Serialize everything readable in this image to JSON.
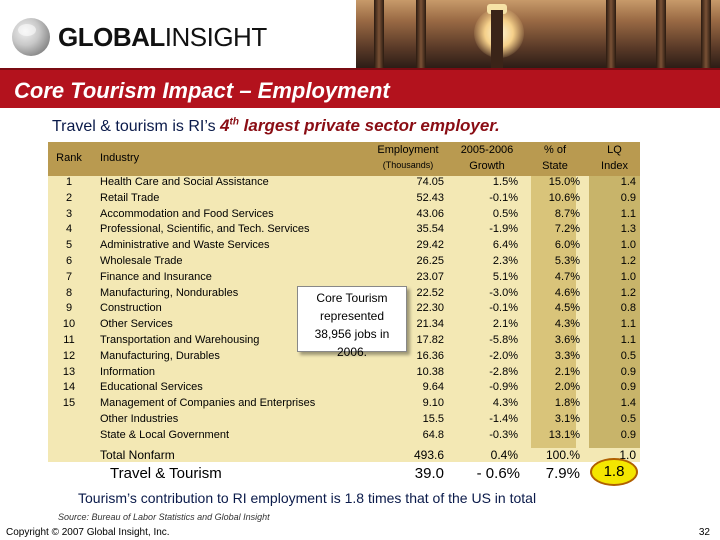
{
  "logo": {
    "word1": "GLOBAL",
    "word2": "INSIGHT"
  },
  "slide_title": "Core Tourism Impact – Employment",
  "subtitle": {
    "lead": "Travel & tourism is RI’s ",
    "ordinal": "4",
    "sup": "th",
    "rest": " largest private sector employer."
  },
  "table": {
    "headers": {
      "rank": "Rank",
      "industry": "Industry",
      "employment": "Employment",
      "employment_unit": "(Thousands)",
      "growth_line1": "2005-2006",
      "growth_line2": "Growth",
      "pct_line1": "% of",
      "pct_line2": "State",
      "lq_line1": "LQ",
      "lq_line2": "Index"
    },
    "rows": [
      {
        "rank": "1",
        "industry": "Health Care and Social Assistance",
        "employment": "74.05",
        "growth": "1.5%",
        "pct": "15.0%",
        "lq": "1.4"
      },
      {
        "rank": "2",
        "industry": "Retail Trade",
        "employment": "52.43",
        "growth": "-0.1%",
        "pct": "10.6%",
        "lq": "0.9"
      },
      {
        "rank": "3",
        "industry": "Accommodation and Food Services",
        "employment": "43.06",
        "growth": "0.5%",
        "pct": "8.7%",
        "lq": "1.1"
      },
      {
        "rank": "4",
        "industry": "Professional, Scientific, and Tech. Services",
        "employment": "35.54",
        "growth": "-1.9%",
        "pct": "7.2%",
        "lq": "1.3"
      },
      {
        "rank": "5",
        "industry": "Administrative and Waste Services",
        "employment": "29.42",
        "growth": "6.4%",
        "pct": "6.0%",
        "lq": "1.0"
      },
      {
        "rank": "6",
        "industry": "Wholesale Trade",
        "employment": "26.25",
        "growth": "2.3%",
        "pct": "5.3%",
        "lq": "1.2"
      },
      {
        "rank": "7",
        "industry": "Finance and Insurance",
        "employment": "23.07",
        "growth": "5.1%",
        "pct": "4.7%",
        "lq": "1.0"
      },
      {
        "rank": "8",
        "industry": "Manufacturing, Nondurables",
        "employment": "22.52",
        "growth": "-3.0%",
        "pct": "4.6%",
        "lq": "1.2"
      },
      {
        "rank": "9",
        "industry": "Construction",
        "employment": "22.30",
        "growth": "-0.1%",
        "pct": "4.5%",
        "lq": "0.8"
      },
      {
        "rank": "10",
        "industry": "Other Services",
        "employment": "21.34",
        "growth": "2.1%",
        "pct": "4.3%",
        "lq": "1.1"
      },
      {
        "rank": "11",
        "industry": "Transportation and Warehousing",
        "employment": "17.82",
        "growth": "-5.8%",
        "pct": "3.6%",
        "lq": "1.1"
      },
      {
        "rank": "12",
        "industry": "Manufacturing, Durables",
        "employment": "16.36",
        "growth": "-2.0%",
        "pct": "3.3%",
        "lq": "0.5"
      },
      {
        "rank": "13",
        "industry": "Information",
        "employment": "10.38",
        "growth": "-2.8%",
        "pct": "2.1%",
        "lq": "0.9"
      },
      {
        "rank": "14",
        "industry": "Educational Services",
        "employment": "9.64",
        "growth": "-0.9%",
        "pct": "2.0%",
        "lq": "0.9"
      },
      {
        "rank": "15",
        "industry": "Management of Companies and Enterprises",
        "employment": "9.10",
        "growth": "4.3%",
        "pct": "1.8%",
        "lq": "1.4"
      },
      {
        "rank": "",
        "industry": "Other Industries",
        "employment": "15.5",
        "growth": "-1.4%",
        "pct": "3.1%",
        "lq": "0.5"
      },
      {
        "rank": "",
        "industry": "State & Local Government",
        "employment": "64.8",
        "growth": "-0.3%",
        "pct": "13.1%",
        "lq": "0.9"
      }
    ],
    "total": {
      "label": "Total Nonfarm",
      "employment": "493.6",
      "growth": "0.4%",
      "pct": "100.%",
      "lq": "1.0"
    },
    "tourism": {
      "label": "Travel & Tourism",
      "employment": "39.0",
      "growth": "- 0.6%",
      "pct": "7.9%",
      "lq": "1.8"
    }
  },
  "callout": {
    "line1": "Core Tourism",
    "line2": "represented",
    "line3": "38,956 jobs in",
    "line4": "2006."
  },
  "footnote": "Tourism’s contribution to RI employment is 1.8 times that of the US in total",
  "source": "Source:  Bureau of Labor Statistics and Global Insight",
  "copyright": "Copyright © 2007 Global Insight, Inc.",
  "page_number": "32",
  "colors": {
    "title_bar": "#b3121d",
    "header_row": "#b99a50",
    "table_body": "#f3e8b4",
    "lq_highlight": "#f4e600"
  }
}
